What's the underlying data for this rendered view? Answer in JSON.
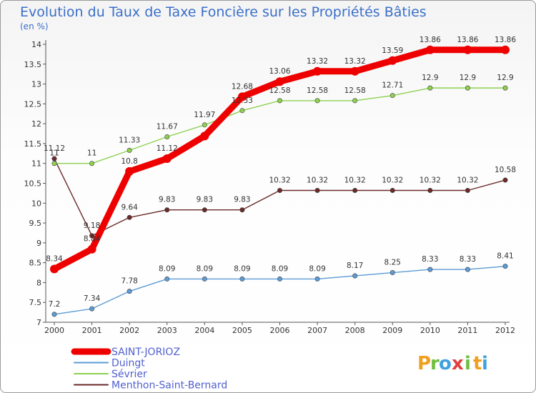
{
  "chart_data": {
    "type": "line",
    "title": "Evolution du Taux de Taxe Foncière sur les Propriétés Bâties",
    "subtitle": "(en %)",
    "categories": [
      "2000",
      "2001",
      "2002",
      "2003",
      "2004",
      "2005",
      "2006",
      "2007",
      "2008",
      "2009",
      "2010",
      "2011",
      "2012"
    ],
    "ylim": [
      7,
      14
    ],
    "yticks": [
      7,
      7.5,
      8,
      8.5,
      9,
      9.5,
      10,
      10.5,
      11,
      11.5,
      12,
      12.5,
      13,
      13.5,
      14
    ],
    "grid": false,
    "legend_position": "bottom-left",
    "series": [
      {
        "name": "SAINT-JORIOZ",
        "color": "#ee0000",
        "values": [
          8.34,
          8.84,
          10.8,
          11.12,
          11.69,
          12.68,
          13.06,
          13.32,
          13.32,
          13.59,
          13.86,
          13.86,
          13.86
        ],
        "labels": [
          "8.34",
          "8.84",
          "10.8",
          "11.12",
          "",
          "12.68",
          "13.06",
          "13.32",
          "13.32",
          "13.59",
          "13.86",
          "13.86",
          "13.86"
        ]
      },
      {
        "name": "Duingt",
        "color": "#5c9bd5",
        "values": [
          7.2,
          7.34,
          7.78,
          8.09,
          8.09,
          8.09,
          8.09,
          8.09,
          8.17,
          8.25,
          8.33,
          8.33,
          8.41
        ],
        "labels": [
          "7.2",
          "7.34",
          "7.78",
          "8.09",
          "8.09",
          "8.09",
          "8.09",
          "8.09",
          "8.17",
          "8.25",
          "8.33",
          "8.33",
          "8.41"
        ]
      },
      {
        "name": "Sévrier",
        "color": "#8ed050",
        "values": [
          11,
          11,
          11.33,
          11.67,
          11.97,
          12.33,
          12.58,
          12.58,
          12.58,
          12.71,
          12.9,
          12.9,
          12.9
        ],
        "labels": [
          "11",
          "11",
          "11.33",
          "11.67",
          "11.97",
          "12.33",
          "12.58",
          "12.58",
          "12.58",
          "12.71",
          "12.9",
          "12.9",
          "12.9"
        ]
      },
      {
        "name": "Menthon-Saint-Bernard",
        "color": "#6b2a2a",
        "values": [
          11.12,
          9.18,
          9.64,
          9.83,
          9.83,
          9.83,
          10.32,
          10.32,
          10.32,
          10.32,
          10.32,
          10.32,
          10.58
        ],
        "labels": [
          "11.12",
          "9.18",
          "9.64",
          "9.83",
          "9.83",
          "9.83",
          "10.32",
          "10.32",
          "10.32",
          "10.32",
          "10.32",
          "10.32",
          "10.58"
        ]
      }
    ]
  },
  "brand": {
    "letters": [
      "P",
      "r",
      "o",
      "x",
      "i",
      "t",
      "i"
    ],
    "colors": [
      "#f0a020",
      "#6cc040",
      "#40a0e0",
      "#e04040",
      "#6cc040",
      "#f0a020",
      "#40a0e0"
    ]
  }
}
